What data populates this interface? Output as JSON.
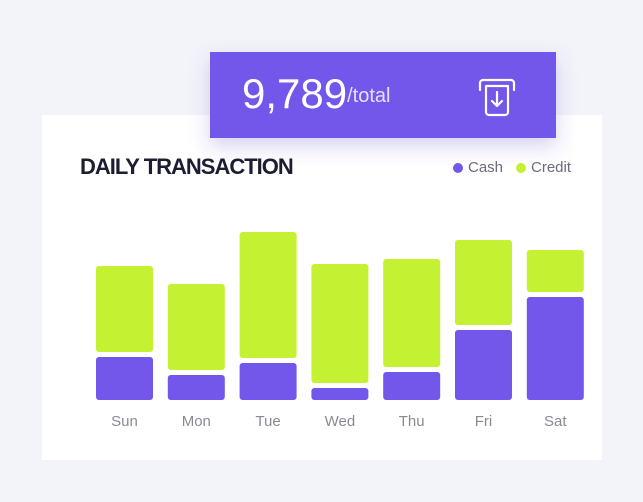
{
  "total": "9,789",
  "total_unit": "/total",
  "chart_data": {
    "type": "bar",
    "stacked": true,
    "title": "DAILY TRANSACTION",
    "categories": [
      "Sun",
      "Mon",
      "Tue",
      "Wed",
      "Thu",
      "Fri",
      "Sat"
    ],
    "series": [
      {
        "name": "Cash",
        "color": "#7357ea",
        "values": [
          43,
          25,
          37,
          12,
          28,
          70,
          103
        ]
      },
      {
        "name": "Credit",
        "color": "#c4f233",
        "values": [
          86,
          86,
          126,
          119,
          108,
          85,
          42
        ]
      }
    ]
  }
}
